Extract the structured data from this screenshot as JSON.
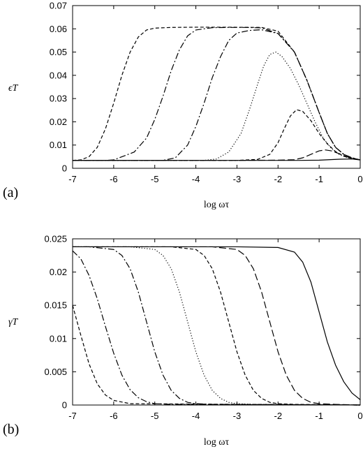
{
  "chart_data": [
    {
      "type": "line",
      "panel_label": "(a)",
      "xlabel": "log ωτ",
      "ylabel": "ϵT",
      "xlim": [
        -7,
        0
      ],
      "ylim": [
        0,
        0.07
      ],
      "x_ticks": [
        "-7",
        "-6",
        "-5",
        "-4",
        "-3",
        "-2",
        "-1",
        "0"
      ],
      "y_ticks": [
        "0",
        "0.01",
        "0.02",
        "0.03",
        "0.04",
        "0.05",
        "0.06",
        "0.07"
      ],
      "grid": false,
      "legend": "none",
      "series": [
        {
          "style": "solid",
          "x": [
            -7,
            -6,
            -5,
            -4,
            -3,
            -2,
            -1.5,
            -1,
            -0.5,
            -0.2,
            0
          ],
          "y": [
            0.0034,
            0.0034,
            0.0034,
            0.0034,
            0.0034,
            0.0034,
            0.0034,
            0.0035,
            0.0039,
            0.004,
            0.0036
          ]
        },
        {
          "style": "long-dash",
          "x": [
            -7,
            -3,
            -2,
            -1.6,
            -1.4,
            -1.2,
            -1.0,
            -0.85,
            -0.7,
            -0.5,
            -0.3,
            0
          ],
          "y": [
            0.0034,
            0.0034,
            0.0035,
            0.0037,
            0.0045,
            0.006,
            0.0075,
            0.0079,
            0.0075,
            0.0062,
            0.0048,
            0.0036
          ]
        },
        {
          "style": "short-dash",
          "x": [
            -7,
            -3,
            -2.5,
            -2.2,
            -2.0,
            -1.85,
            -1.7,
            -1.55,
            -1.4,
            -1.2,
            -1.0,
            -0.8,
            -0.6,
            -0.4,
            -0.2,
            0
          ],
          "y": [
            0.0034,
            0.0034,
            0.0038,
            0.006,
            0.011,
            0.017,
            0.0225,
            0.0252,
            0.0245,
            0.0205,
            0.015,
            0.0105,
            0.0072,
            0.0052,
            0.0042,
            0.0036
          ]
        },
        {
          "style": "dotted",
          "x": [
            -7,
            -3.8,
            -3.5,
            -3.2,
            -2.9,
            -2.7,
            -2.5,
            -2.35,
            -2.2,
            -2.05,
            -1.9,
            -1.7,
            -1.5,
            -1.3,
            -1.1,
            -0.9,
            -0.7,
            -0.5,
            -0.3,
            0
          ],
          "y": [
            0.0034,
            0.0034,
            0.004,
            0.007,
            0.015,
            0.025,
            0.036,
            0.044,
            0.049,
            0.05,
            0.048,
            0.043,
            0.036,
            0.028,
            0.02,
            0.013,
            0.0085,
            0.0058,
            0.0045,
            0.0036
          ]
        },
        {
          "style": "dash-dot",
          "x": [
            -7,
            -4.8,
            -4.5,
            -4.2,
            -4.0,
            -3.8,
            -3.6,
            -3.4,
            -3.2,
            -3.0,
            -2.7,
            -2.4,
            -2.0,
            -1.6,
            -1.3,
            -1.0,
            -0.8,
            -0.6,
            -0.4,
            -0.2,
            0
          ],
          "y": [
            0.0034,
            0.0034,
            0.0045,
            0.01,
            0.018,
            0.028,
            0.039,
            0.048,
            0.055,
            0.0582,
            0.0593,
            0.0596,
            0.058,
            0.05,
            0.038,
            0.024,
            0.015,
            0.009,
            0.006,
            0.0045,
            0.0036
          ]
        },
        {
          "style": "dash-dot",
          "x": [
            -7,
            -6.2,
            -6.0,
            -5.5,
            -5.2,
            -5.0,
            -4.8,
            -4.6,
            -4.4,
            -4.2,
            -4.0,
            -3.6,
            -3.2,
            -2.8,
            -2.4,
            -2.0,
            -1.6,
            -1.3,
            -1.0,
            -0.8,
            -0.6,
            -0.4,
            -0.2,
            0
          ],
          "y": [
            0.0034,
            0.0034,
            0.0036,
            0.007,
            0.013,
            0.021,
            0.031,
            0.042,
            0.051,
            0.057,
            0.0595,
            0.0605,
            0.0606,
            0.0606,
            0.0604,
            0.058,
            0.05,
            0.038,
            0.024,
            0.015,
            0.009,
            0.006,
            0.0045,
            0.0036
          ]
        },
        {
          "style": "short-dash",
          "x": [
            -7,
            -6.8,
            -6.6,
            -6.4,
            -6.2,
            -6.0,
            -5.8,
            -5.6,
            -5.4,
            -5.2,
            -5.0,
            -4.6,
            -4.0,
            -3.2,
            -2.4,
            -2.0,
            -1.6,
            -1.3,
            -1.0,
            -0.8,
            -0.6,
            -0.4,
            -0.2,
            0
          ],
          "y": [
            0.0034,
            0.0036,
            0.005,
            0.009,
            0.017,
            0.028,
            0.04,
            0.05,
            0.0565,
            0.0595,
            0.0603,
            0.0606,
            0.0607,
            0.0607,
            0.0606,
            0.059,
            0.05,
            0.038,
            0.024,
            0.015,
            0.009,
            0.006,
            0.0045,
            0.0036
          ]
        }
      ]
    },
    {
      "type": "line",
      "panel_label": "(b)",
      "xlabel": "log ωτ",
      "ylabel": "γT",
      "xlim": [
        -7,
        0
      ],
      "ylim": [
        0,
        0.025
      ],
      "x_ticks": [
        "-7",
        "-6",
        "-5",
        "-4",
        "-3",
        "-2",
        "-1",
        "0"
      ],
      "y_ticks": [
        "0",
        "0.005",
        "0.01",
        "0.015",
        "0.02",
        "0.025"
      ],
      "grid": false,
      "legend": "none",
      "series": [
        {
          "style": "solid",
          "x": [
            -7,
            -3,
            -2.0,
            -1.6,
            -1.4,
            -1.2,
            -1.0,
            -0.8,
            -0.6,
            -0.4,
            -0.2,
            0
          ],
          "y": [
            0.0238,
            0.0238,
            0.0237,
            0.023,
            0.0215,
            0.0185,
            0.014,
            0.0095,
            0.006,
            0.0035,
            0.0018,
            0.0008
          ]
        },
        {
          "style": "long-dash",
          "x": [
            -7,
            -3.6,
            -3.0,
            -2.8,
            -2.6,
            -2.4,
            -2.2,
            -2.0,
            -1.8,
            -1.6,
            -1.4,
            -1.2,
            -1.0,
            -0.6,
            0
          ],
          "y": [
            0.0238,
            0.0238,
            0.0234,
            0.0225,
            0.0205,
            0.017,
            0.0125,
            0.008,
            0.0045,
            0.0022,
            0.001,
            0.0004,
            0.0002,
            0.0001,
            0
          ]
        },
        {
          "style": "short-dash",
          "x": [
            -7,
            -4.6,
            -4.0,
            -3.8,
            -3.6,
            -3.4,
            -3.2,
            -3.0,
            -2.8,
            -2.6,
            -2.4,
            -2.2,
            -2.0,
            -1.6,
            0
          ],
          "y": [
            0.0238,
            0.0238,
            0.0234,
            0.0225,
            0.0205,
            0.017,
            0.0125,
            0.008,
            0.0045,
            0.0022,
            0.001,
            0.0004,
            0.0002,
            0.0001,
            0
          ]
        },
        {
          "style": "dotted",
          "x": [
            -7,
            -5.6,
            -5.0,
            -4.8,
            -4.6,
            -4.4,
            -4.2,
            -4.0,
            -3.8,
            -3.6,
            -3.4,
            -3.2,
            -3.0,
            -2.6,
            0
          ],
          "y": [
            0.0238,
            0.0238,
            0.0234,
            0.0225,
            0.0205,
            0.017,
            0.0125,
            0.008,
            0.0045,
            0.0022,
            0.001,
            0.0004,
            0.0002,
            0.0001,
            0
          ]
        },
        {
          "style": "dash-dot",
          "x": [
            -7,
            -6.6,
            -6.0,
            -5.8,
            -5.6,
            -5.4,
            -5.2,
            -5.0,
            -4.8,
            -4.6,
            -4.4,
            -4.2,
            -4.0,
            -3.6,
            0
          ],
          "y": [
            0.0238,
            0.0238,
            0.0234,
            0.0225,
            0.0205,
            0.017,
            0.0125,
            0.008,
            0.0045,
            0.0022,
            0.001,
            0.0004,
            0.0002,
            0.0001,
            0
          ]
        },
        {
          "style": "dash-dot",
          "x": [
            -7,
            -6.8,
            -6.6,
            -6.4,
            -6.2,
            -6.0,
            -5.8,
            -5.6,
            -5.4,
            -5.2,
            -5.0,
            -4.6,
            0
          ],
          "y": [
            0.0232,
            0.022,
            0.0195,
            0.016,
            0.0118,
            0.0078,
            0.0045,
            0.0023,
            0.0011,
            0.0005,
            0.0002,
            0.0001,
            0
          ]
        },
        {
          "style": "short-dash",
          "x": [
            -7,
            -6.8,
            -6.6,
            -6.4,
            -6.2,
            -6.0,
            -5.6,
            0
          ],
          "y": [
            0.015,
            0.0105,
            0.0062,
            0.0032,
            0.0015,
            0.0007,
            0.0002,
            0
          ]
        }
      ]
    }
  ]
}
